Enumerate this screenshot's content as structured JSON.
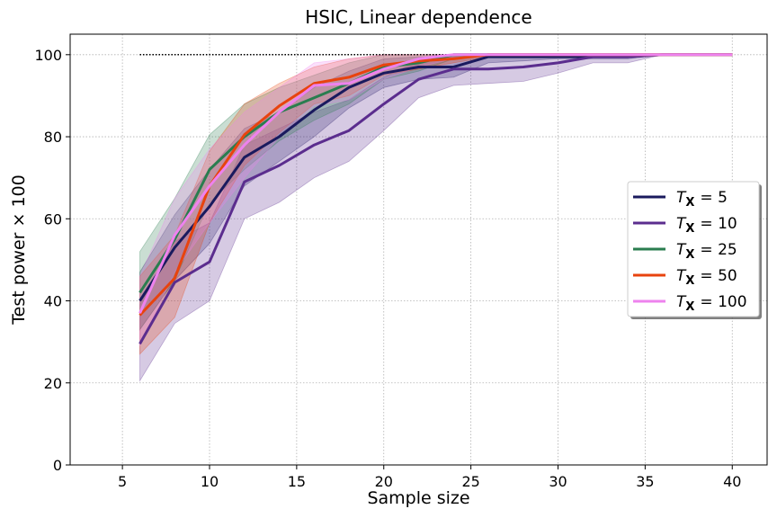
{
  "chart_data": {
    "type": "line",
    "title": "HSIC, Linear dependence",
    "xlabel": "Sample size",
    "ylabel": "Test power × 100",
    "xlim": [
      2,
      42
    ],
    "ylim": [
      0,
      105
    ],
    "xticks": [
      5,
      10,
      15,
      20,
      25,
      30,
      35,
      40
    ],
    "yticks": [
      0,
      20,
      40,
      60,
      80,
      100
    ],
    "grid": true,
    "legend_position": "center-right",
    "reference_line": {
      "y": 100,
      "x_range": [
        6,
        40
      ],
      "style": "dotted",
      "color": "#000000"
    },
    "x": [
      6,
      8,
      10,
      12,
      14,
      16,
      18,
      20,
      22,
      24,
      26,
      28,
      30,
      32,
      34,
      36,
      38,
      40
    ],
    "series": [
      {
        "name": "T_X = 5",
        "legend_base": "T",
        "legend_sub": "X",
        "legend_value": "= 5",
        "color": "#1a1a5e",
        "values": [
          40,
          53,
          63,
          75,
          80,
          86.5,
          92,
          95.5,
          97,
          97,
          99.5,
          99.5,
          99.5,
          99.5,
          99.5,
          100,
          100,
          100
        ],
        "lower": [
          33,
          45,
          54,
          68,
          74,
          80,
          87,
          92,
          94,
          94.5,
          98,
          98.5,
          99,
          99,
          99,
          100,
          100,
          100
        ],
        "upper": [
          47,
          61,
          72,
          82,
          86,
          92,
          96,
          99,
          99.5,
          99.5,
          100,
          100,
          100,
          100,
          100,
          100,
          100,
          100
        ]
      },
      {
        "name": "T_X = 10",
        "legend_base": "T",
        "legend_sub": "X",
        "legend_value": "= 10",
        "color": "#5b2d8e",
        "values": [
          29.5,
          44.5,
          49.5,
          69,
          73,
          78,
          81.5,
          88,
          94,
          96.5,
          96.5,
          97,
          98,
          99.5,
          99.5,
          100,
          100,
          100
        ],
        "lower": [
          20.5,
          34.5,
          40,
          60,
          64,
          70,
          74,
          81.5,
          89.5,
          92.5,
          93,
          93.5,
          95.5,
          98,
          98,
          100,
          100,
          100
        ],
        "upper": [
          39,
          54.5,
          59,
          78,
          82,
          86,
          89,
          94.5,
          98.5,
          100,
          100,
          100,
          100,
          100,
          100,
          100,
          100,
          100
        ]
      },
      {
        "name": "T_X = 25",
        "legend_base": "T",
        "legend_sub": "X",
        "legend_value": "= 25",
        "color": "#2a7d4f",
        "values": [
          42,
          55,
          72,
          80,
          86,
          89.5,
          93,
          97,
          98,
          100,
          100,
          100,
          100,
          100,
          100,
          100,
          100,
          100
        ],
        "lower": [
          33,
          45,
          64,
          72,
          79,
          84,
          88,
          94,
          96,
          99,
          99.5,
          100,
          100,
          100,
          100,
          100,
          100,
          100
        ],
        "upper": [
          52,
          65,
          80.5,
          88,
          92,
          95,
          98,
          100,
          100,
          100,
          100,
          100,
          100,
          100,
          100,
          100,
          100,
          100
        ]
      },
      {
        "name": "T_X = 50",
        "legend_base": "T",
        "legend_sub": "X",
        "legend_value": "= 50",
        "color": "#e8430e",
        "values": [
          36.5,
          45.5,
          68,
          80.5,
          87.5,
          93,
          94.5,
          97.5,
          98.5,
          99,
          100,
          100,
          100,
          100,
          100,
          100,
          100,
          100
        ],
        "lower": [
          27,
          36,
          59,
          73,
          81,
          88,
          90,
          95,
          96.5,
          98,
          99.5,
          100,
          100,
          100,
          100,
          100,
          100,
          100
        ],
        "upper": [
          46,
          56,
          76.5,
          88,
          93,
          97,
          99,
          100,
          100,
          100,
          100,
          100,
          100,
          100,
          100,
          100,
          100,
          100
        ]
      },
      {
        "name": "T_X = 100",
        "legend_base": "T",
        "legend_sub": "X",
        "legend_value": "= 100",
        "color": "#ee82ee",
        "values": [
          37,
          56,
          68,
          78,
          86,
          92.5,
          93,
          96.5,
          99,
          100,
          100,
          100,
          100,
          100,
          100,
          100,
          100,
          100
        ],
        "lower": [
          29,
          47,
          59,
          70,
          80,
          87.5,
          89,
          94,
          97,
          99,
          99.5,
          100,
          100,
          100,
          100,
          100,
          100,
          100
        ],
        "upper": [
          46,
          65,
          77,
          86,
          92,
          98,
          99,
          100,
          100,
          100,
          100,
          100,
          100,
          100,
          100,
          100,
          100,
          100
        ]
      }
    ]
  }
}
